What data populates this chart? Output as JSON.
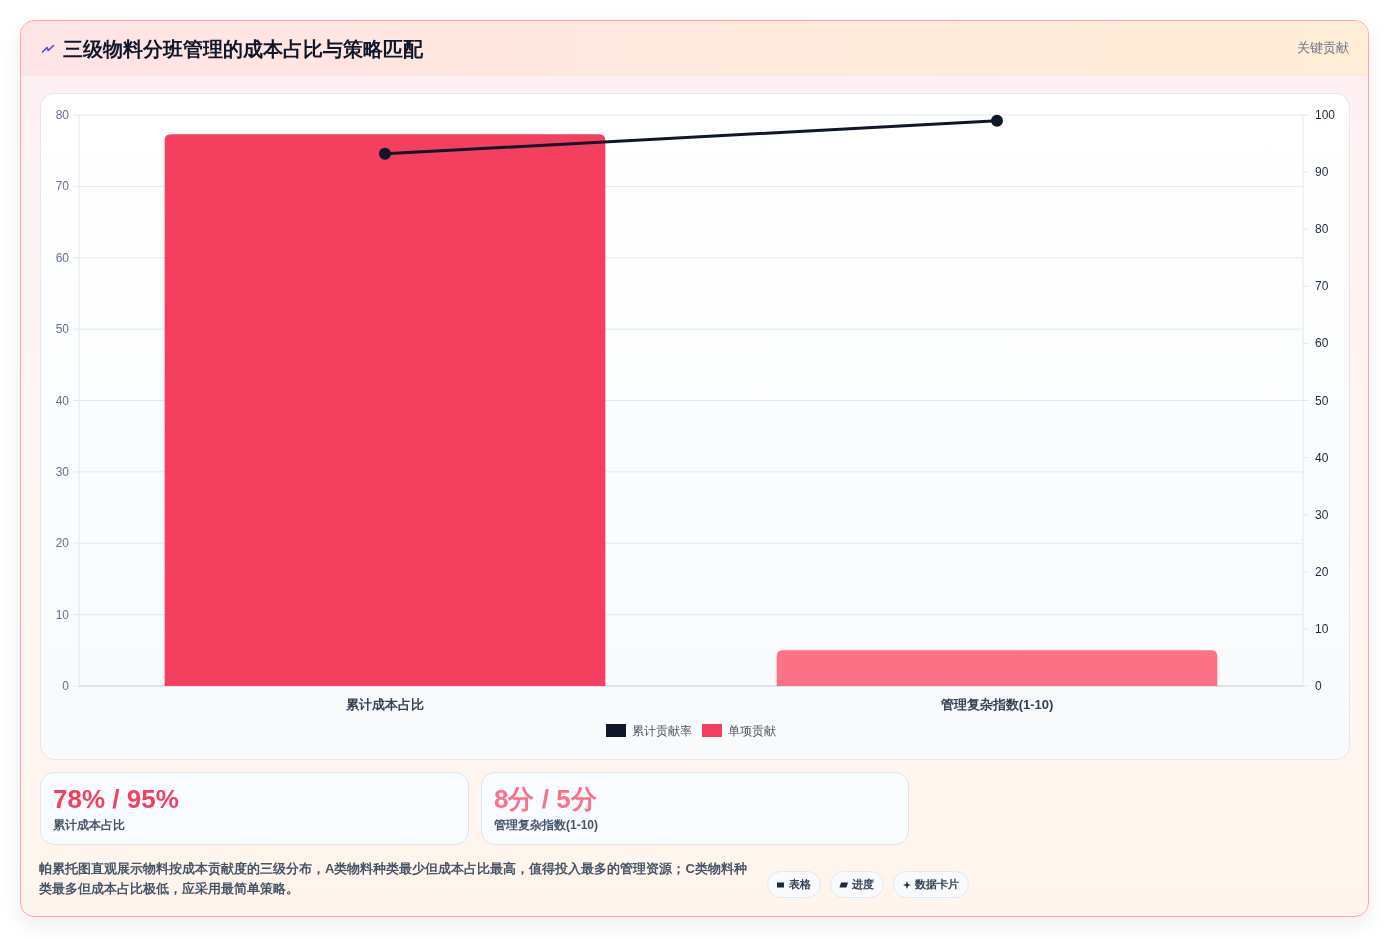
{
  "chart_data": {
    "type": "bar",
    "title": "三级物料分班管理的成本占比与策略匹配",
    "categories": [
      "累计成本占比",
      "管理复杂指数(1-10)"
    ],
    "series": [
      {
        "name": "累计贡献率",
        "type": "line",
        "axis": "y2",
        "color": "#0f172a",
        "values": [
          93.2,
          99
        ]
      },
      {
        "name": "单项贡献",
        "type": "bar",
        "colors": [
          "#f43f5e",
          "#fb7185"
        ],
        "values": [
          77.3,
          5
        ]
      }
    ],
    "ylim": [
      0,
      80
    ],
    "yticks": [
      0,
      10,
      20,
      30,
      40,
      50,
      60,
      70,
      80
    ],
    "y2lim": [
      0,
      100
    ],
    "y2ticks": [
      0,
      10,
      20,
      30,
      40,
      50,
      60,
      70,
      80,
      90,
      100
    ],
    "grid": "y",
    "legend": "bottom",
    "marker": "circle",
    "annotations": [
      "关键贡献",
      "78% / 95%",
      "累计成本占比",
      "8分 / 5分",
      "管理复杂指数(1-10)",
      "帕累托图直观展示物料按成本贡献度的三级分布，A类物料种类最少但成本占比最高，值得投入最多的管理资源；C类物料种类最多但成本占比极低，应采用最简单策略。",
      "表格",
      "进度",
      "数据卡片"
    ]
  }
}
